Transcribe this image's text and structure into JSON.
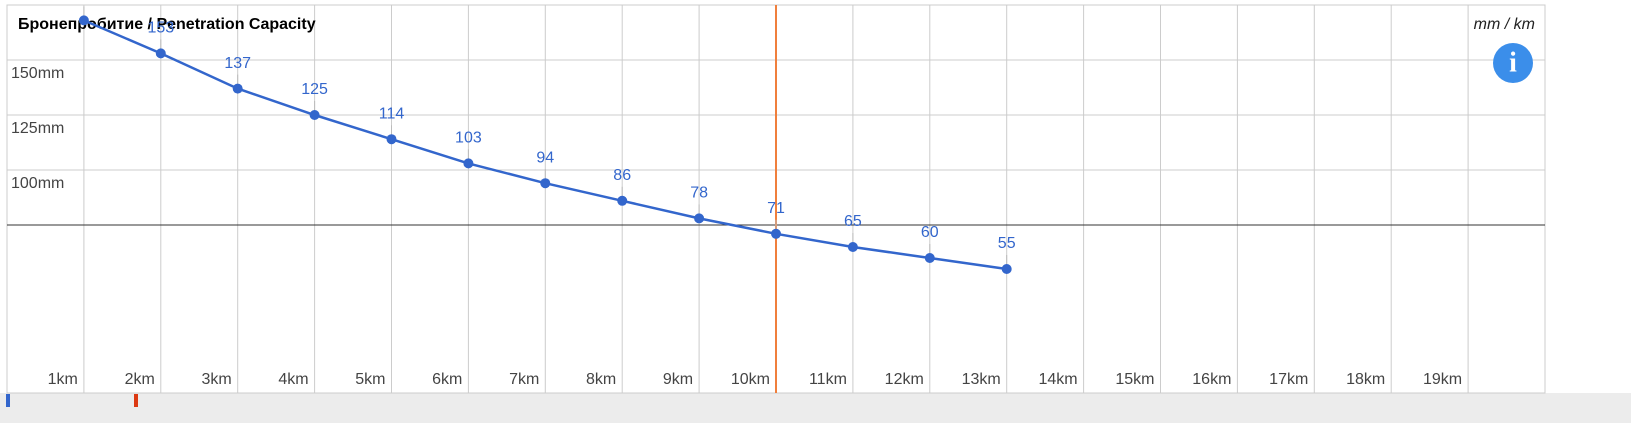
{
  "chart_data": {
    "type": "line",
    "title": "Бронепробитие / Penetration Capacity",
    "unit_note": "mm / km",
    "x": [
      1,
      2,
      3,
      4,
      5,
      6,
      7,
      8,
      9,
      10,
      11,
      12,
      13
    ],
    "series": [
      {
        "name": "Penetration",
        "color": "#3366cc",
        "values": [
          168,
          153,
          137,
          125,
          114,
          103,
          94,
          86,
          78,
          71,
          65,
          60,
          55
        ]
      }
    ],
    "xlim": [
      0,
      20
    ],
    "xticks": [
      {
        "value": 1,
        "label": "1km"
      },
      {
        "value": 2,
        "label": "2km"
      },
      {
        "value": 3,
        "label": "3km"
      },
      {
        "value": 4,
        "label": "4km"
      },
      {
        "value": 5,
        "label": "5km"
      },
      {
        "value": 6,
        "label": "6km"
      },
      {
        "value": 7,
        "label": "7km"
      },
      {
        "value": 8,
        "label": "8km"
      },
      {
        "value": 9,
        "label": "9km"
      },
      {
        "value": 10,
        "label": "10km"
      },
      {
        "value": 11,
        "label": "11km"
      },
      {
        "value": 12,
        "label": "12km"
      },
      {
        "value": 13,
        "label": "13km"
      },
      {
        "value": 14,
        "label": "14km"
      },
      {
        "value": 15,
        "label": "15km"
      },
      {
        "value": 16,
        "label": "16km"
      },
      {
        "value": 17,
        "label": "17km"
      },
      {
        "value": 18,
        "label": "18km"
      },
      {
        "value": 19,
        "label": "19km"
      }
    ],
    "ylim": [
      0,
      175
    ],
    "yticks": [
      {
        "value": 100,
        "label": "100mm"
      },
      {
        "value": 125,
        "label": "125mm"
      },
      {
        "value": 150,
        "label": "150mm"
      }
    ],
    "reference_y": 75,
    "marker_x": 10,
    "marker_color": "#f07f3c",
    "grid": true
  }
}
